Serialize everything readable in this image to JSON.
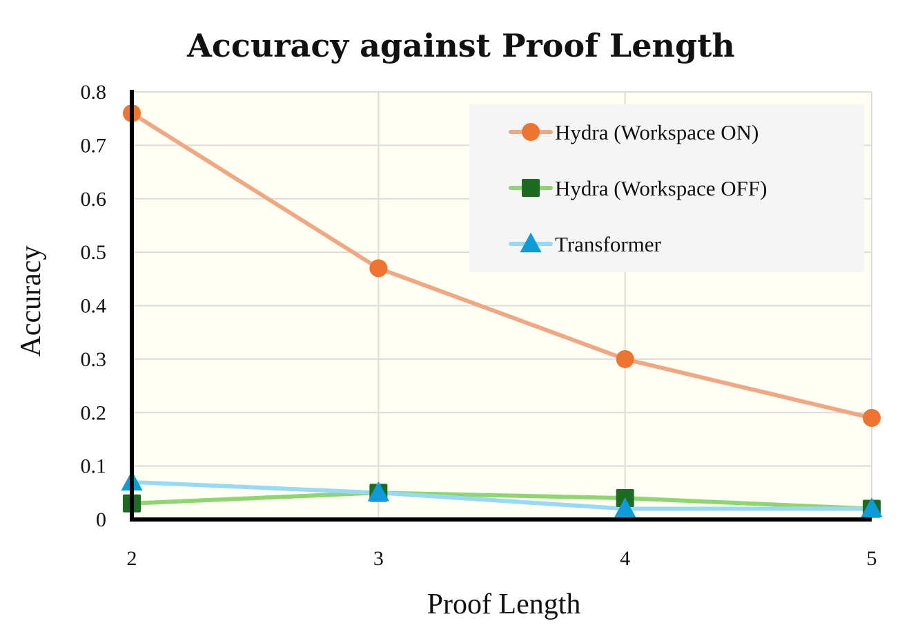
{
  "chart_data": {
    "type": "line",
    "title": "Accuracy against Proof Length",
    "xlabel": "Proof Length",
    "ylabel": "Accuracy",
    "x": [
      2,
      3,
      4,
      5
    ],
    "x_tick_labels": [
      "2",
      "3",
      "4",
      "5"
    ],
    "xlim": [
      2,
      5
    ],
    "ylim": [
      0,
      0.8
    ],
    "y_ticks": [
      0,
      0.1,
      0.2,
      0.3,
      0.4,
      0.5,
      0.6,
      0.7,
      0.8
    ],
    "y_tick_labels": [
      "0",
      "0.1",
      "0.2",
      "0.3",
      "0.4",
      "0.5",
      "0.6",
      "0.7",
      "0.8"
    ],
    "grid": true,
    "legend_position": "top-right",
    "plot_background": "#fffff3",
    "legend_background": "#f5f5f5",
    "series": [
      {
        "name": "Hydra (Workspace ON)",
        "values": [
          0.76,
          0.47,
          0.3,
          0.19
        ],
        "line_color": "#f0a884",
        "marker_color": "#ee7431",
        "marker": "circle"
      },
      {
        "name": "Hydra (Workspace OFF)",
        "values": [
          0.03,
          0.05,
          0.04,
          0.02
        ],
        "line_color": "#8fd672",
        "marker_color": "#1d6b22",
        "marker": "square"
      },
      {
        "name": "Transformer",
        "values": [
          0.07,
          0.05,
          0.02,
          0.02
        ],
        "line_color": "#9ad9f5",
        "marker_color": "#109bd6",
        "marker": "triangle"
      }
    ]
  }
}
